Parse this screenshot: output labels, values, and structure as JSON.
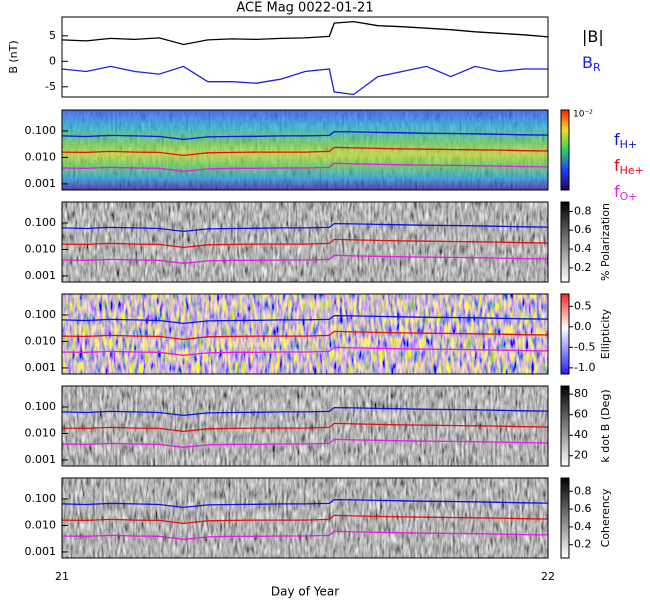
{
  "chart_data": [
    {
      "type": "line",
      "title": "ACE Mag 0022-01-21",
      "ylabel": "B (nT)",
      "xlabel": "Day of Year",
      "xlim": [
        21,
        22
      ],
      "xticks": [
        21,
        22
      ],
      "ylim": [
        -7,
        8.7
      ],
      "yticks": [
        -5,
        0,
        5
      ],
      "x": [
        21.0,
        21.05,
        21.1,
        21.15,
        21.2,
        21.25,
        21.3,
        21.35,
        21.4,
        21.45,
        21.5,
        21.55,
        21.56,
        21.6,
        21.65,
        21.7,
        21.75,
        21.8,
        21.85,
        21.9,
        21.95,
        22.0
      ],
      "series": [
        {
          "name": "|B|",
          "color": "#000000",
          "values": [
            4.2,
            4.0,
            4.5,
            4.3,
            4.6,
            3.3,
            4.2,
            4.4,
            4.3,
            4.5,
            4.6,
            4.9,
            7.5,
            7.8,
            7.0,
            6.8,
            6.5,
            6.2,
            5.8,
            5.5,
            5.2,
            4.8
          ]
        },
        {
          "name": "B",
          "subscript": "R",
          "color": "#1f1fe0",
          "values": [
            -1.5,
            -2,
            -1,
            -2,
            -2.5,
            -1,
            -4,
            -4,
            -4.3,
            -3.5,
            -2,
            -1.5,
            -6,
            -6.5,
            -3,
            -2,
            -1,
            -3,
            -1,
            -2,
            -1.5,
            -1.5
          ]
        }
      ]
    },
    {
      "type": "spectrogram",
      "log_y": true,
      "ylim": [
        0.00059,
        0.62
      ],
      "yticks": [
        {
          "value": 0.1,
          "label": "0.100"
        },
        {
          "value": 0.01,
          "label": "0.010"
        },
        {
          "value": 0.001,
          "label": "0.001"
        }
      ],
      "colorbar_top_label": "10⁻²",
      "x": [
        21.0,
        21.05,
        21.1,
        21.15,
        21.2,
        21.25,
        21.3,
        21.35,
        21.4,
        21.45,
        21.5,
        21.55,
        21.56,
        21.6,
        21.65,
        21.7,
        21.75,
        21.8,
        21.85,
        21.9,
        21.95,
        22.0
      ],
      "series": [
        {
          "name": "f",
          "subscript": "H+",
          "color": "#1010e0",
          "values": [
            0.065,
            0.062,
            0.068,
            0.065,
            0.062,
            0.048,
            0.06,
            0.062,
            0.063,
            0.065,
            0.065,
            0.068,
            0.095,
            0.092,
            0.088,
            0.085,
            0.082,
            0.08,
            0.078,
            0.075,
            0.072,
            0.07
          ]
        },
        {
          "name": "f",
          "subscript": "He+",
          "color": "#e01010",
          "values": [
            0.016,
            0.0155,
            0.017,
            0.016,
            0.0155,
            0.012,
            0.015,
            0.0155,
            0.016,
            0.016,
            0.016,
            0.017,
            0.024,
            0.023,
            0.022,
            0.021,
            0.0205,
            0.02,
            0.0195,
            0.019,
            0.018,
            0.0175
          ]
        },
        {
          "name": "f",
          "subscript": "O+",
          "color": "#e020e0",
          "values": [
            0.004,
            0.0039,
            0.0042,
            0.004,
            0.0039,
            0.003,
            0.0037,
            0.0039,
            0.0039,
            0.004,
            0.004,
            0.0042,
            0.006,
            0.0057,
            0.0055,
            0.0053,
            0.0051,
            0.005,
            0.0049,
            0.0047,
            0.0045,
            0.0044
          ]
        }
      ]
    },
    {
      "type": "spectrogram",
      "colorbar_label": "% Polarization",
      "colorbar_lim": [
        0.05,
        0.9
      ],
      "colorbar_ticks": [
        0.2,
        0.4,
        0.6,
        0.8
      ]
    },
    {
      "type": "spectrogram",
      "colorbar_label": "Ellipticity",
      "colorbar_lim": [
        -1.15,
        0.8
      ],
      "colorbar_ticks": [
        {
          "value": -1,
          "label": "-1.0"
        },
        -0.5,
        {
          "value": 0,
          "label": "0.0"
        },
        0.5
      ]
    },
    {
      "type": "spectrogram",
      "colorbar_label": "k dot B (Deg)",
      "colorbar_lim": [
        10,
        88
      ],
      "colorbar_ticks": [
        20,
        40,
        60,
        80
      ]
    },
    {
      "type": "spectrogram",
      "colorbar_label": "Coherency",
      "colorbar_lim": [
        0.05,
        0.95
      ],
      "colorbar_ticks": [
        0.2,
        0.4,
        0.6,
        0.8
      ]
    }
  ]
}
